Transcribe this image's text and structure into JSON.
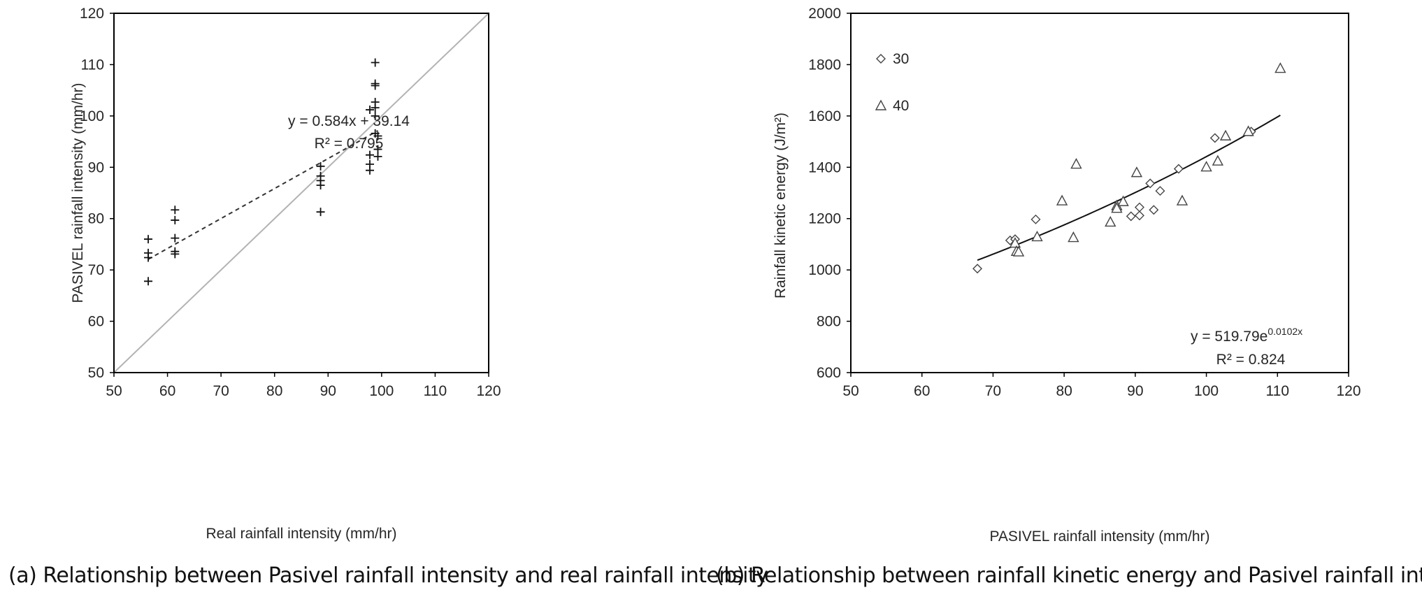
{
  "chart_data": [
    {
      "type": "scatter",
      "panel": "a",
      "caption": "(a) Relationship between Pasivel rainfall intensity and real rainfall intensity",
      "xlabel": "Real rainfall intensity (mm/hr)",
      "ylabel": "PASIVEL rainfall intensity (mm/hr)",
      "xlim": [
        50,
        120
      ],
      "ylim": [
        50,
        120
      ],
      "xticks": [
        "50",
        "60",
        "70",
        "80",
        "90",
        "100",
        "110",
        "120"
      ],
      "yticks": [
        "50",
        "60",
        "70",
        "80",
        "90",
        "100",
        "110",
        "120"
      ],
      "marker": "plus",
      "points": [
        [
          56.4,
          76.0
        ],
        [
          56.4,
          73.3
        ],
        [
          56.4,
          72.4
        ],
        [
          56.4,
          67.8
        ],
        [
          61.4,
          81.7
        ],
        [
          61.4,
          79.7
        ],
        [
          61.4,
          76.2
        ],
        [
          61.4,
          73.6
        ],
        [
          61.4,
          73.1
        ],
        [
          88.6,
          90.2
        ],
        [
          88.6,
          88.3
        ],
        [
          88.6,
          87.4
        ],
        [
          88.6,
          86.5
        ],
        [
          88.6,
          81.3
        ],
        [
          97.8,
          101.2
        ],
        [
          97.8,
          92.4
        ],
        [
          97.8,
          90.6
        ],
        [
          97.8,
          89.4
        ],
        [
          98.8,
          110.4
        ],
        [
          98.8,
          106.3
        ],
        [
          98.8,
          105.9
        ],
        [
          98.8,
          102.7
        ],
        [
          98.8,
          101.6
        ],
        [
          98.8,
          100.0
        ],
        [
          98.8,
          96.6
        ],
        [
          99.3,
          96.1
        ],
        [
          99.3,
          93.5
        ],
        [
          99.3,
          92.1
        ]
      ],
      "reference_line": {
        "name": "1:1 line",
        "from": [
          50,
          50
        ],
        "to": [
          120,
          120
        ]
      },
      "trendline": {
        "type": "linear",
        "slope": 0.584,
        "intercept": 39.14,
        "x_range": [
          56.4,
          99.3
        ]
      },
      "equation": "y = 0.584x + 39.14",
      "r2": "R² = 0.795"
    },
    {
      "type": "scatter",
      "panel": "b",
      "caption": "(b) Relationship between rainfall kinetic energy and Pasivel rainfall intensity",
      "xlabel": "PASIVEL rainfall intensity (mm/hr)",
      "ylabel": "Rainfall kinetic energy (J/m²)",
      "xlim": [
        50,
        120
      ],
      "ylim": [
        600,
        2000
      ],
      "xticks": [
        "50",
        "60",
        "70",
        "80",
        "90",
        "100",
        "110",
        "120"
      ],
      "yticks": [
        "600",
        "800",
        "1000",
        "1200",
        "1400",
        "1600",
        "1800",
        "2000"
      ],
      "legend": {
        "placement": "top-left",
        "entries": [
          {
            "label": "30",
            "marker": "diamond"
          },
          {
            "label": "40",
            "marker": "triangle"
          }
        ]
      },
      "series": [
        {
          "name": "30",
          "marker": "diamond",
          "points": [
            [
              67.8,
              1005
            ],
            [
              72.4,
              1115
            ],
            [
              73.1,
              1120
            ],
            [
              76.0,
              1197
            ],
            [
              89.4,
              1209
            ],
            [
              90.6,
              1212
            ],
            [
              90.6,
              1244
            ],
            [
              92.1,
              1337
            ],
            [
              92.6,
              1234
            ],
            [
              93.5,
              1308
            ],
            [
              96.1,
              1394
            ],
            [
              101.2,
              1514
            ],
            [
              106.3,
              1539
            ]
          ]
        },
        {
          "name": "40",
          "marker": "triangle",
          "points": [
            [
              73.1,
              1105
            ],
            [
              73.3,
              1073
            ],
            [
              73.6,
              1071
            ],
            [
              76.2,
              1130
            ],
            [
              79.7,
              1270
            ],
            [
              81.3,
              1127
            ],
            [
              81.7,
              1413
            ],
            [
              86.5,
              1187
            ],
            [
              87.4,
              1251
            ],
            [
              87.4,
              1241
            ],
            [
              88.3,
              1267
            ],
            [
              90.2,
              1380
            ],
            [
              96.6,
              1270
            ],
            [
              100.0,
              1402
            ],
            [
              101.6,
              1425
            ],
            [
              102.7,
              1523
            ],
            [
              105.9,
              1540
            ],
            [
              110.4,
              1786
            ]
          ]
        }
      ],
      "trendline": {
        "type": "exponential",
        "a": 519.79,
        "b": 0.0102,
        "x_range": [
          67.8,
          110.4
        ]
      },
      "equation_base": "y = 519.79e",
      "equation_exp": "0.0102x",
      "r2": "R² = 0.824"
    }
  ]
}
